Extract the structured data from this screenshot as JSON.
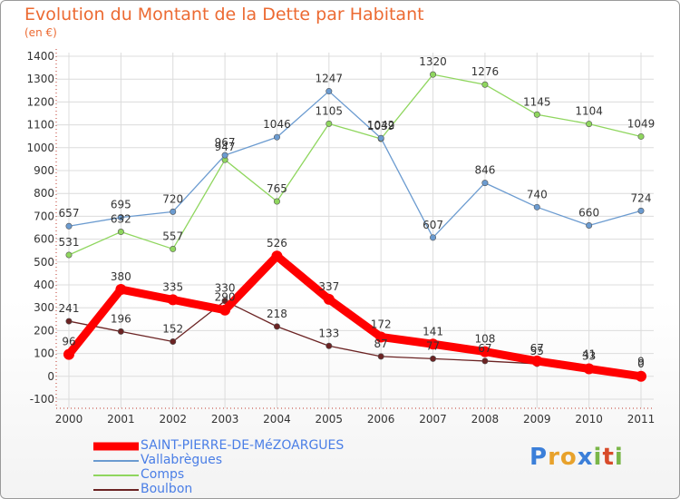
{
  "chart_data": {
    "type": "line",
    "title": "Evolution du Montant de la Dette par Habitant",
    "subtitle": "(en €)",
    "x": [
      "2000",
      "2001",
      "2002",
      "2003",
      "2004",
      "2005",
      "2006",
      "2007",
      "2008",
      "2009",
      "2010",
      "2011"
    ],
    "ylim": [
      -100,
      1400
    ],
    "yticks": [
      -100,
      0,
      100,
      200,
      300,
      400,
      500,
      600,
      700,
      800,
      900,
      1000,
      1100,
      1200,
      1300,
      1400
    ],
    "grid": true,
    "legend_placement": "bottom-left",
    "series": [
      {
        "name": "SAINT-PIERRE-DE-MéZOARGUES",
        "color": "#ff0000",
        "values": [
          96,
          380,
          335,
          290,
          526,
          337,
          172,
          141,
          108,
          67,
          33,
          0
        ],
        "labels": [
          "96",
          "380",
          "335",
          "290",
          "526",
          "337",
          "172",
          "141",
          "108",
          "67",
          "33",
          "0"
        ]
      },
      {
        "name": "Vallabrègues",
        "color": "#6b9bd0",
        "values": [
          657,
          695,
          720,
          967,
          1046,
          1247,
          1042,
          607,
          846,
          740,
          660,
          724
        ],
        "labels": [
          "657",
          "695",
          "720",
          "967",
          "1046",
          "1247",
          "1042",
          "607",
          "846",
          "740",
          "660",
          "724"
        ]
      },
      {
        "name": "Comps",
        "color": "#8fd65e",
        "values": [
          531,
          632,
          557,
          947,
          765,
          1105,
          1039,
          1320,
          1276,
          1145,
          1104,
          1049
        ],
        "labels": [
          "531",
          "632",
          "557",
          "947",
          "765",
          "1105",
          "1039",
          "1320",
          "1276",
          "1145",
          "1104",
          "1049"
        ]
      },
      {
        "name": "Boulbon",
        "color": "#6b2323",
        "values": [
          241,
          196,
          152,
          330,
          218,
          133,
          87,
          77,
          67,
          55,
          41,
          9
        ],
        "labels": [
          "241",
          "196",
          "152",
          "330",
          "218",
          "133",
          "87",
          "77",
          "67",
          "55",
          "41",
          "9"
        ]
      }
    ]
  },
  "logo": {
    "letters": [
      "P",
      "r",
      "o",
      "x",
      "i",
      "t",
      "i"
    ],
    "colors": [
      "#3b7fd9",
      "#e8a22c",
      "#e8a22c",
      "#3b7fd9",
      "#7ab648",
      "#d84b2a",
      "#7ab648"
    ]
  }
}
